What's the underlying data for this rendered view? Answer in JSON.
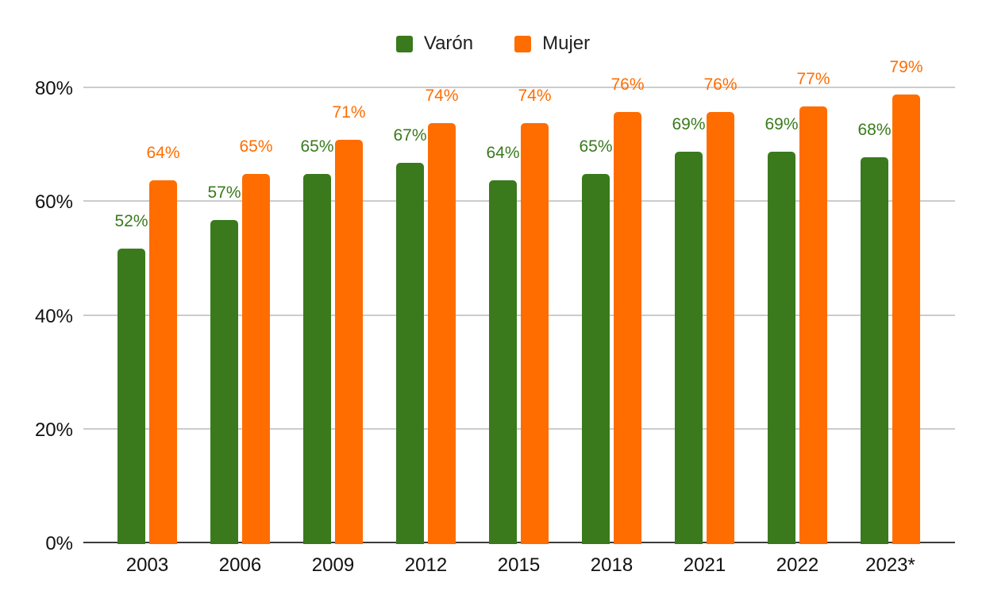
{
  "chart_data": {
    "type": "bar",
    "title": "",
    "xlabel": "",
    "ylabel": "",
    "categories": [
      "2003",
      "2006",
      "2009",
      "2012",
      "2015",
      "2018",
      "2021",
      "2022",
      "2023*"
    ],
    "series": [
      {
        "name": "Varón",
        "color": "#3a7a1d",
        "values": [
          52,
          57,
          65,
          67,
          64,
          65,
          69,
          69,
          68
        ]
      },
      {
        "name": "Mujer",
        "color": "#ff6d01",
        "values": [
          64,
          65,
          71,
          74,
          74,
          76,
          76,
          77,
          79
        ]
      }
    ],
    "value_suffix": "%",
    "data_labels_visible": true,
    "ylim": [
      0,
      80
    ],
    "y_ticks": [
      {
        "value": 0,
        "label": "0%"
      },
      {
        "value": 20,
        "label": "20%"
      },
      {
        "value": 40,
        "label": "40%"
      },
      {
        "value": 60,
        "label": "60%"
      },
      {
        "value": 80,
        "label": "80%"
      }
    ],
    "grid": true,
    "legend_position": "top",
    "colors": {
      "background": "#ffffff",
      "gridline": "#cccccc",
      "axis_line": "#3c3c3c",
      "tick_text": "#111111",
      "legend_text": "#212121"
    }
  }
}
